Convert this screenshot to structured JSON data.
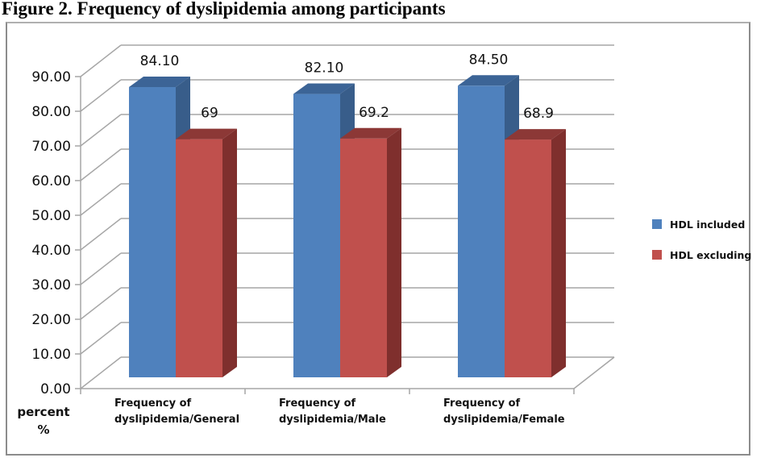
{
  "figure_title": "Figure 2. Frequency of dyslipidemia among participants",
  "chart_data": {
    "type": "bar",
    "style": "3d-clustered-column",
    "title": "Figure 2. Frequency of dyslipidemia among participants",
    "xlabel": "",
    "ylabel": "percent %",
    "ylabel_lines": [
      "percent",
      "%"
    ],
    "ylim": [
      0,
      90
    ],
    "yticks": [
      0,
      10,
      20,
      30,
      40,
      50,
      60,
      70,
      80,
      90
    ],
    "ytick_labels": [
      "0.00",
      "10.00",
      "20.00",
      "30.00",
      "40.00",
      "50.00",
      "60.00",
      "70.00",
      "80.00",
      "90.00"
    ],
    "grid": true,
    "legend_position": "right",
    "categories": [
      "Frequency of dyslipidemia/General",
      "Frequency of dyslipidemia/Male",
      "Frequency of dyslipidemia/Female"
    ],
    "category_lines": [
      [
        "Frequency of",
        "dyslipidemia/General"
      ],
      [
        "Frequency of",
        "dyslipidemia/Male"
      ],
      [
        "Frequency of",
        "dyslipidemia/Female"
      ]
    ],
    "series": [
      {
        "name": "HDL included",
        "color": "#4f81bd",
        "side_color": "#385d8a",
        "top_color": "#3c6496",
        "values": [
          84.1,
          82.1,
          84.5
        ],
        "labels": [
          "84.10",
          "82.10",
          "84.50"
        ]
      },
      {
        "name": "HDL excluding",
        "color": "#c0504d",
        "side_color": "#7f2f2d",
        "top_color": "#8c3836",
        "values": [
          69,
          69.2,
          68.9
        ],
        "labels": [
          "69",
          "69.2",
          "68.9"
        ]
      }
    ]
  }
}
